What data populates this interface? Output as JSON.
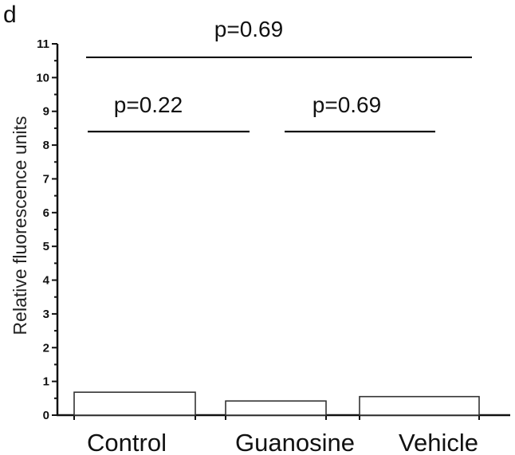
{
  "panel_label": "d",
  "chart_data": {
    "type": "bar",
    "categories": [
      "Control",
      "Guanosine",
      "Vehicle"
    ],
    "values": [
      0.68,
      0.42,
      0.55
    ],
    "ylabel": "Relative fluorescence units",
    "xlabel": "",
    "ylim": [
      0,
      11
    ],
    "yticks": [
      "0",
      "1",
      "2",
      "3",
      "4",
      "5",
      "6",
      "7",
      "8",
      "9",
      "10",
      "11"
    ],
    "grid": false,
    "annotations": [
      {
        "text": "p=0.69",
        "from": 0,
        "to": 2,
        "y": 10.6
      },
      {
        "text": "p=0.22",
        "from": 0,
        "to": 1,
        "y": 8.4
      },
      {
        "text": "p=0.69",
        "from": 1,
        "to": 2,
        "y": 8.4
      }
    ]
  }
}
